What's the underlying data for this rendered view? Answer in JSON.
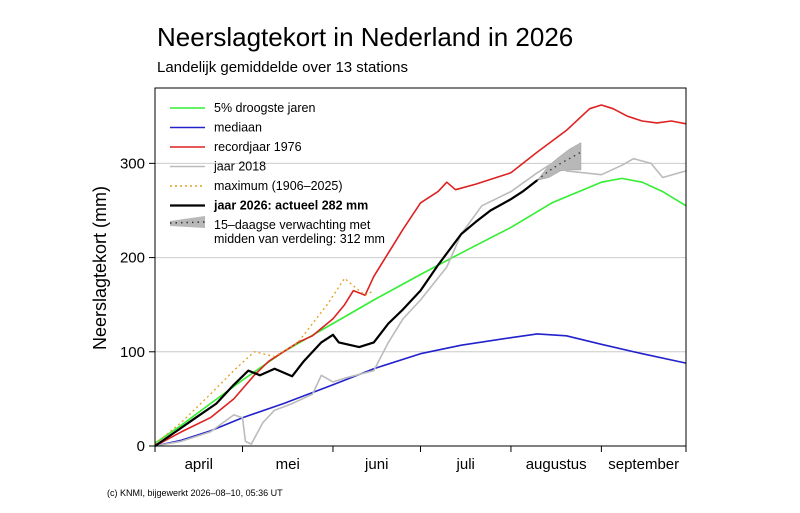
{
  "chart_data": {
    "type": "line",
    "title": "Neerslagtekort in Nederland in 2026",
    "subtitle": "Landelijk gemiddelde over 13 stations",
    "ylabel": "Neerslagtekort (mm)",
    "xlabel": "",
    "ylim": [
      0,
      380
    ],
    "yticks": [
      0,
      100,
      200,
      300
    ],
    "xlim": [
      "2026-04-01",
      "2026-09-30"
    ],
    "month_labels": [
      "april",
      "mei",
      "juni",
      "juli",
      "augustus",
      "september"
    ],
    "grid": true,
    "legend_position": "top-left",
    "series": [
      {
        "key": "p95",
        "name": "5% droogste jaren",
        "color": "#33ee33",
        "points": [
          [
            "2026-04-01",
            3
          ],
          [
            "2026-04-10",
            22
          ],
          [
            "2026-04-20",
            45
          ],
          [
            "2026-05-01",
            70
          ],
          [
            "2026-05-15",
            100
          ],
          [
            "2026-06-01",
            130
          ],
          [
            "2026-06-15",
            155
          ],
          [
            "2026-07-01",
            182
          ],
          [
            "2026-07-15",
            205
          ],
          [
            "2026-08-01",
            232
          ],
          [
            "2026-08-15",
            258
          ],
          [
            "2026-09-01",
            280
          ],
          [
            "2026-09-08",
            284
          ],
          [
            "2026-09-15",
            280
          ],
          [
            "2026-09-22",
            270
          ],
          [
            "2026-09-30",
            255
          ]
        ]
      },
      {
        "key": "median",
        "name": "mediaan",
        "color": "#2222cc",
        "points": [
          [
            "2026-04-01",
            0
          ],
          [
            "2026-04-10",
            6
          ],
          [
            "2026-04-20",
            16
          ],
          [
            "2026-05-01",
            30
          ],
          [
            "2026-05-15",
            45
          ],
          [
            "2026-06-01",
            65
          ],
          [
            "2026-06-15",
            82
          ],
          [
            "2026-07-01",
            98
          ],
          [
            "2026-07-15",
            107
          ],
          [
            "2026-08-01",
            115
          ],
          [
            "2026-08-10",
            119
          ],
          [
            "2026-08-20",
            117
          ],
          [
            "2026-09-01",
            108
          ],
          [
            "2026-09-15",
            98
          ],
          [
            "2026-09-30",
            88
          ]
        ]
      },
      {
        "key": "record1976",
        "name": "recordjaar 1976",
        "color": "#dd2222",
        "points": [
          [
            "2026-04-01",
            0
          ],
          [
            "2026-04-10",
            15
          ],
          [
            "2026-04-20",
            30
          ],
          [
            "2026-04-28",
            50
          ],
          [
            "2026-05-05",
            75
          ],
          [
            "2026-05-10",
            90
          ],
          [
            "2026-05-15",
            100
          ],
          [
            "2026-05-20",
            110
          ],
          [
            "2026-05-25",
            117
          ],
          [
            "2026-06-01",
            135
          ],
          [
            "2026-06-05",
            150
          ],
          [
            "2026-06-08",
            165
          ],
          [
            "2026-06-12",
            160
          ],
          [
            "2026-06-15",
            180
          ],
          [
            "2026-06-20",
            205
          ],
          [
            "2026-06-25",
            230
          ],
          [
            "2026-07-01",
            258
          ],
          [
            "2026-07-07",
            270
          ],
          [
            "2026-07-10",
            280
          ],
          [
            "2026-07-13",
            272
          ],
          [
            "2026-07-20",
            278
          ],
          [
            "2026-07-25",
            283
          ],
          [
            "2026-08-01",
            290
          ],
          [
            "2026-08-10",
            312
          ],
          [
            "2026-08-20",
            335
          ],
          [
            "2026-08-28",
            358
          ],
          [
            "2026-09-01",
            362
          ],
          [
            "2026-09-05",
            358
          ],
          [
            "2026-09-10",
            350
          ],
          [
            "2026-09-15",
            345
          ],
          [
            "2026-09-20",
            343
          ],
          [
            "2026-09-25",
            345
          ],
          [
            "2026-09-30",
            342
          ]
        ]
      },
      {
        "key": "y2018",
        "name": "jaar 2018",
        "color": "#bbbbbb",
        "points": [
          [
            "2026-04-01",
            0
          ],
          [
            "2026-04-10",
            5
          ],
          [
            "2026-04-20",
            15
          ],
          [
            "2026-04-28",
            33
          ],
          [
            "2026-05-01",
            30
          ],
          [
            "2026-05-02",
            5
          ],
          [
            "2026-05-04",
            2
          ],
          [
            "2026-05-08",
            25
          ],
          [
            "2026-05-12",
            38
          ],
          [
            "2026-05-18",
            45
          ],
          [
            "2026-05-25",
            55
          ],
          [
            "2026-05-28",
            75
          ],
          [
            "2026-06-01",
            68
          ],
          [
            "2026-06-05",
            72
          ],
          [
            "2026-06-15",
            80
          ],
          [
            "2026-06-20",
            110
          ],
          [
            "2026-06-25",
            135
          ],
          [
            "2026-07-01",
            155
          ],
          [
            "2026-07-10",
            190
          ],
          [
            "2026-07-15",
            225
          ],
          [
            "2026-07-22",
            255
          ],
          [
            "2026-08-01",
            270
          ],
          [
            "2026-08-10",
            290
          ],
          [
            "2026-08-15",
            300
          ],
          [
            "2026-08-20",
            292
          ],
          [
            "2026-09-01",
            288
          ],
          [
            "2026-09-08",
            298
          ],
          [
            "2026-09-12",
            305
          ],
          [
            "2026-09-18",
            300
          ],
          [
            "2026-09-22",
            285
          ],
          [
            "2026-09-30",
            292
          ]
        ]
      },
      {
        "key": "maximum",
        "name": "maximum (1906–2025)",
        "color": "#e0a020",
        "dashed": true,
        "points": [
          [
            "2026-04-01",
            2
          ],
          [
            "2026-04-10",
            25
          ],
          [
            "2026-04-20",
            55
          ],
          [
            "2026-04-28",
            80
          ],
          [
            "2026-05-05",
            100
          ],
          [
            "2026-05-12",
            95
          ],
          [
            "2026-05-20",
            110
          ],
          [
            "2026-05-30",
            150
          ],
          [
            "2026-06-05",
            178
          ],
          [
            "2026-06-08",
            170
          ],
          [
            "2026-06-12",
            160
          ],
          [
            "2026-06-15",
            165
          ]
        ]
      },
      {
        "key": "y2026",
        "name": "jaar 2026: actueel 282 mm",
        "color": "#000000",
        "bold": true,
        "points": [
          [
            "2026-04-01",
            0
          ],
          [
            "2026-04-08",
            15
          ],
          [
            "2026-04-15",
            30
          ],
          [
            "2026-04-22",
            45
          ],
          [
            "2026-04-28",
            65
          ],
          [
            "2026-05-03",
            80
          ],
          [
            "2026-05-07",
            75
          ],
          [
            "2026-05-12",
            82
          ],
          [
            "2026-05-18",
            74
          ],
          [
            "2026-05-22",
            90
          ],
          [
            "2026-05-28",
            110
          ],
          [
            "2026-06-01",
            118
          ],
          [
            "2026-06-03",
            110
          ],
          [
            "2026-06-10",
            105
          ],
          [
            "2026-06-15",
            110
          ],
          [
            "2026-06-20",
            130
          ],
          [
            "2026-06-25",
            145
          ],
          [
            "2026-07-01",
            165
          ],
          [
            "2026-07-07",
            192
          ],
          [
            "2026-07-15",
            225
          ],
          [
            "2026-07-20",
            238
          ],
          [
            "2026-07-25",
            250
          ],
          [
            "2026-08-01",
            262
          ],
          [
            "2026-08-05",
            270
          ],
          [
            "2026-08-10",
            282
          ]
        ]
      },
      {
        "key": "forecast",
        "name": "15–daagse verwachting met\nmidden van verdeling: 312 mm",
        "color": "#333333",
        "dotted": true,
        "points": [
          [
            "2026-08-10",
            282
          ],
          [
            "2026-08-14",
            292
          ],
          [
            "2026-08-18",
            300
          ],
          [
            "2026-08-21",
            305
          ],
          [
            "2026-08-25",
            312
          ]
        ],
        "band_upper": [
          [
            "2026-08-10",
            282
          ],
          [
            "2026-08-14",
            298
          ],
          [
            "2026-08-18",
            308
          ],
          [
            "2026-08-21",
            315
          ],
          [
            "2026-08-25",
            322
          ]
        ],
        "band_lower": [
          [
            "2026-08-10",
            282
          ],
          [
            "2026-08-14",
            285
          ],
          [
            "2026-08-18",
            292
          ],
          [
            "2026-08-21",
            293
          ],
          [
            "2026-08-25",
            293
          ]
        ]
      }
    ]
  },
  "footer": "(c) KNMI, bijgewerkt 2026–08–10, 05:36 UT"
}
